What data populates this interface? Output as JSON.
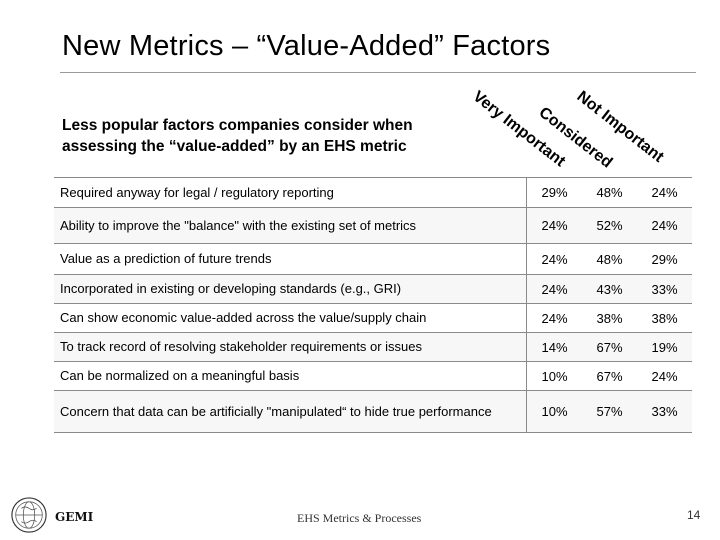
{
  "slide": {
    "title": "New Metrics – “Value-Added” Factors",
    "subtitle": "Less popular factors companies consider when assessing the “value-added” by an EHS metric",
    "columns": [
      "Very Important",
      "Considered",
      "Not Important"
    ],
    "rows": [
      {
        "label": "Required anyway for legal / regulatory reporting",
        "values": [
          "29%",
          "48%",
          "24%"
        ]
      },
      {
        "label": "Ability to improve the \"balance\" with the existing set of metrics",
        "values": [
          "24%",
          "52%",
          "24%"
        ]
      },
      {
        "label": "Value as a prediction of future trends",
        "values": [
          "24%",
          "48%",
          "29%"
        ]
      },
      {
        "label": "Incorporated in existing or developing standards (e.g., GRI)",
        "values": [
          "24%",
          "43%",
          "33%"
        ]
      },
      {
        "label": "Can show  economic value-added across the value/supply chain",
        "values": [
          "24%",
          "38%",
          "38%"
        ]
      },
      {
        "label": "To track record of resolving stakeholder requirements or issues",
        "values": [
          "14%",
          "67%",
          "19%"
        ]
      },
      {
        "label": "Can be normalized on a  meaningful basis",
        "values": [
          "10%",
          "67%",
          "24%"
        ]
      },
      {
        "label": "Concern that data can be artificially \"manipulated“ to hide true performance",
        "values": [
          "10%",
          "57%",
          "33%"
        ]
      }
    ]
  },
  "footer": {
    "org": "GEMI",
    "text": "EHS Metrics & Processes",
    "page": "14"
  },
  "icons": {
    "logo": "globe-logo-icon"
  }
}
